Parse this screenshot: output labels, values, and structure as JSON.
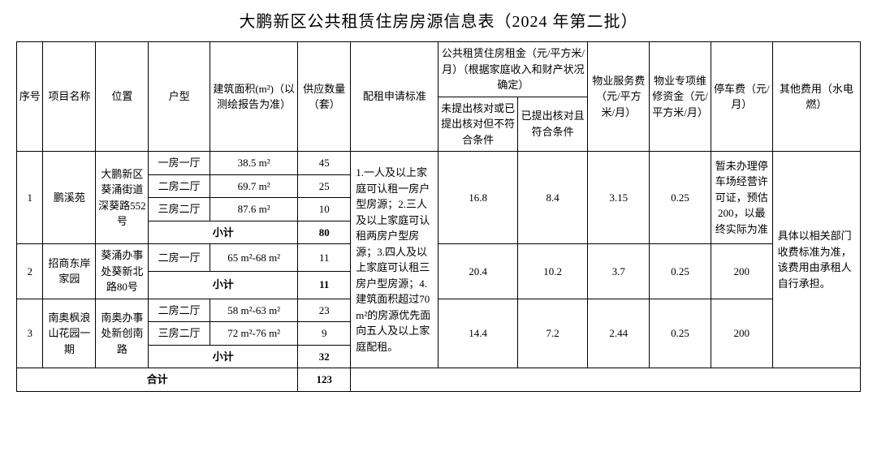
{
  "title": "大鹏新区公共租赁住房房源信息表（2024 年第二批）",
  "headers": {
    "seq": "序号",
    "name": "项目名称",
    "loc": "位置",
    "type": "户型",
    "area": "建筑面积(m²)（以测绘报告为准）",
    "qty": "供应数量（套）",
    "std": "配租申请标准",
    "rent_group": "公共租赁住房租金（元/平方米/月）（根据家庭收入和财产状况确定）",
    "rent1": "未提出核对或已提出核对但不符合条件",
    "rent2": "已提出核对且符合条件",
    "svc": "物业服务费（元/平方米/月）",
    "fund": "物业专项维修资金（元/平方米/月）",
    "park": "停车费（元/月）",
    "other": "其他费用（水电燃）"
  },
  "p1": {
    "seq": "1",
    "name": "鹏溪苑",
    "loc": "大鹏新区葵涌街道深葵路552号",
    "r1_type": "一房一厅",
    "r1_area": "38.5 m²",
    "r1_qty": "45",
    "r2_type": "二房二厅",
    "r2_area": "69.7 m²",
    "r2_qty": "25",
    "r3_type": "三房二厅",
    "r3_area": "87.6 m²",
    "r3_qty": "10",
    "subtotal_label": "小计",
    "subtotal_qty": "80",
    "rent1": "16.8",
    "rent2": "8.4",
    "svc": "3.15",
    "fund": "0.25",
    "park": "暂未办理停车场经营许可证，预估200，以最终实际为准"
  },
  "p2": {
    "seq": "2",
    "name": "招商东岸家园",
    "loc": "葵涌办事处葵新北路80号",
    "r1_type": "二房一厅",
    "r1_area": "65 m²-68 m²",
    "r1_qty": "11",
    "subtotal_label": "小计",
    "subtotal_qty": "11",
    "rent1": "20.4",
    "rent2": "10.2",
    "svc": "3.7",
    "fund": "0.25",
    "park": "200"
  },
  "p3": {
    "seq": "3",
    "name": "南奥枫浪山花园一期",
    "loc": "南奥办事处新创南路",
    "r1_type": "二房二厅",
    "r1_area": "58 m²-63 m²",
    "r1_qty": "23",
    "r2_type": "三房二厅",
    "r2_area": "72 m²-76 m²",
    "r2_qty": "9",
    "subtotal_label": "小计",
    "subtotal_qty": "32",
    "rent1": "14.4",
    "rent2": "7.2",
    "svc": "2.44",
    "fund": "0.25",
    "park": "200"
  },
  "std_text": "1.一人及以上家庭可认租一房户型房源；2.三人及以上家庭可认租两房户型房源；3.四人及以上家庭可认租三房户型房源；4.建筑面积超过70 m²的房源优先面向五人及以上家庭配租。",
  "other_text": "具体以相关部门收费标准为准，该费用由承租人自行承担。",
  "total_label": "合计",
  "total_qty": "123"
}
